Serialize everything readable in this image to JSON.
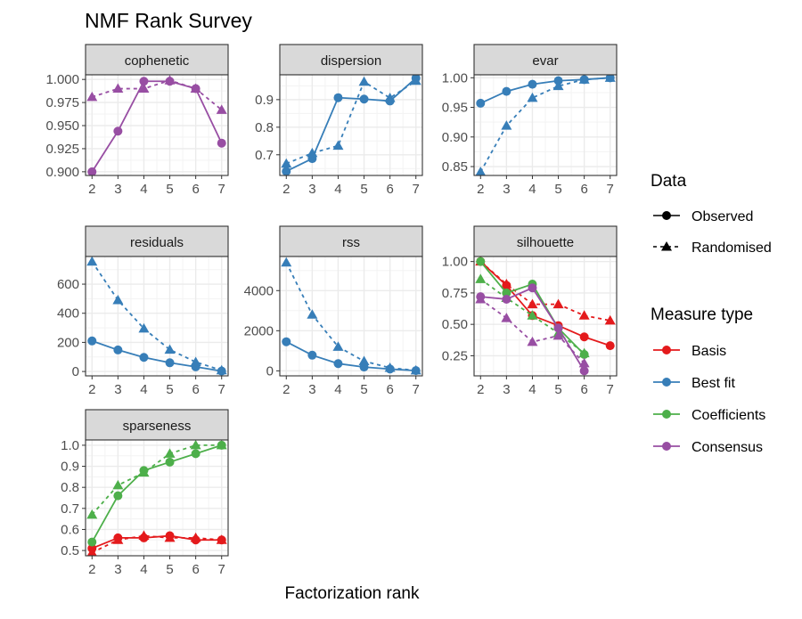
{
  "chart_data": {
    "type": "line",
    "title": "NMF Rank Survey",
    "xlabel": "Factorization rank",
    "ylabel": "",
    "x": [
      2,
      3,
      4,
      5,
      6,
      7
    ],
    "grid": true,
    "legend_placement": "right",
    "legend": {
      "data_title": "Data",
      "data_entries": [
        {
          "label": "Observed",
          "line": "solid",
          "shape": "circle"
        },
        {
          "label": "Randomised",
          "line": "dashed",
          "shape": "triangle"
        }
      ],
      "measure_title": "Measure type",
      "measure_entries": [
        {
          "label": "Basis",
          "color": "#E41A1C"
        },
        {
          "label": "Best fit",
          "color": "#377EB8"
        },
        {
          "label": "Coefficients",
          "color": "#4DAF4A"
        },
        {
          "label": "Consensus",
          "color": "#984EA3"
        }
      ]
    },
    "panels": [
      {
        "name": "cophenetic",
        "ylim": [
          0.896,
          1.005
        ],
        "yticks": [
          0.9,
          0.925,
          0.95,
          0.975,
          1.0
        ],
        "tick_labels": [
          "0.900",
          "0.925",
          "0.950",
          "0.975",
          "1.000"
        ],
        "series": [
          {
            "measure": "Consensus",
            "data": "Observed",
            "values": [
              0.9,
              0.944,
              0.998,
              0.998,
              0.99,
              0.931
            ]
          },
          {
            "measure": "Consensus",
            "data": "Randomised",
            "values": [
              0.981,
              0.99,
              0.99,
              0.999,
              0.99,
              0.967
            ]
          }
        ]
      },
      {
        "name": "dispersion",
        "ylim": [
          0.625,
          0.99
        ],
        "yticks": [
          0.7,
          0.8,
          0.9
        ],
        "tick_labels": [
          "0.7",
          "0.8",
          "0.9"
        ],
        "series": [
          {
            "measure": "Best fit",
            "data": "Observed",
            "values": [
              0.64,
              0.686,
              0.907,
              0.902,
              0.895,
              0.978
            ]
          },
          {
            "measure": "Best fit",
            "data": "Randomised",
            "values": [
              0.668,
              0.706,
              0.733,
              0.965,
              0.906,
              0.968
            ]
          }
        ]
      },
      {
        "name": "evar",
        "ylim": [
          0.835,
          1.005
        ],
        "yticks": [
          0.85,
          0.9,
          0.95,
          1.0
        ],
        "tick_labels": [
          "0.85",
          "0.90",
          "0.95",
          "1.00"
        ],
        "series": [
          {
            "measure": "Best fit",
            "data": "Observed",
            "values": [
              0.957,
              0.977,
              0.989,
              0.995,
              0.997,
              1.0
            ]
          },
          {
            "measure": "Best fit",
            "data": "Randomised",
            "values": [
              0.841,
              0.919,
              0.966,
              0.986,
              0.997,
              1.0
            ]
          }
        ]
      },
      {
        "name": "residuals",
        "ylim": [
          -30,
          790
        ],
        "yticks": [
          0,
          200,
          400,
          600
        ],
        "tick_labels": [
          "0",
          "200",
          "400",
          "600"
        ],
        "series": [
          {
            "measure": "Best fit",
            "data": "Observed",
            "values": [
              210,
              148,
              97,
              60,
              32,
              3
            ]
          },
          {
            "measure": "Best fit",
            "data": "Randomised",
            "values": [
              755,
              490,
              295,
              150,
              65,
              8
            ]
          }
        ]
      },
      {
        "name": "rss",
        "ylim": [
          -250,
          5700
        ],
        "yticks": [
          0,
          2000,
          4000
        ],
        "tick_labels": [
          "0",
          "2000",
          "4000"
        ],
        "series": [
          {
            "measure": "Best fit",
            "data": "Observed",
            "values": [
              1450,
              780,
              360,
              190,
              90,
              10
            ]
          },
          {
            "measure": "Best fit",
            "data": "Randomised",
            "values": [
              5400,
              2800,
              1200,
              480,
              150,
              20
            ]
          }
        ]
      },
      {
        "name": "silhouette",
        "ylim": [
          0.09,
          1.04
        ],
        "yticks": [
          0.25,
          0.5,
          0.75,
          1.0
        ],
        "tick_labels": [
          "0.25",
          "0.50",
          "0.75",
          "1.00"
        ],
        "series": [
          {
            "measure": "Basis",
            "data": "Observed",
            "values": [
              1.0,
              0.81,
              0.57,
              0.49,
              0.4,
              0.33
            ]
          },
          {
            "measure": "Basis",
            "data": "Randomised",
            "values": [
              1.0,
              0.82,
              0.66,
              0.66,
              0.57,
              0.53
            ]
          },
          {
            "measure": "Coefficients",
            "data": "Observed",
            "values": [
              1.0,
              0.75,
              0.82,
              0.47,
              0.26,
              null
            ]
          },
          {
            "measure": "Coefficients",
            "data": "Randomised",
            "values": [
              0.86,
              0.71,
              0.57,
              0.43,
              0.27,
              null
            ]
          },
          {
            "measure": "Consensus",
            "data": "Observed",
            "values": [
              0.72,
              0.7,
              0.79,
              0.47,
              0.13,
              null
            ]
          },
          {
            "measure": "Consensus",
            "data": "Randomised",
            "values": [
              0.7,
              0.55,
              0.36,
              0.41,
              0.19,
              null
            ]
          }
        ]
      },
      {
        "name": "sparseness",
        "ylim": [
          0.475,
          1.025
        ],
        "yticks": [
          0.5,
          0.6,
          0.7,
          0.8,
          0.9,
          1.0
        ],
        "tick_labels": [
          "0.5",
          "0.6",
          "0.7",
          "0.8",
          "0.9",
          "1.0"
        ],
        "series": [
          {
            "measure": "Basis",
            "data": "Observed",
            "values": [
              0.51,
              0.56,
              0.56,
              0.57,
              0.55,
              0.55
            ]
          },
          {
            "measure": "Basis",
            "data": "Randomised",
            "values": [
              0.49,
              0.55,
              0.57,
              0.56,
              0.56,
              0.55
            ]
          },
          {
            "measure": "Coefficients",
            "data": "Observed",
            "values": [
              0.54,
              0.76,
              0.88,
              0.92,
              0.96,
              1.0
            ]
          },
          {
            "measure": "Coefficients",
            "data": "Randomised",
            "values": [
              0.67,
              0.81,
              0.87,
              0.96,
              1.0,
              1.0
            ]
          }
        ]
      }
    ]
  }
}
